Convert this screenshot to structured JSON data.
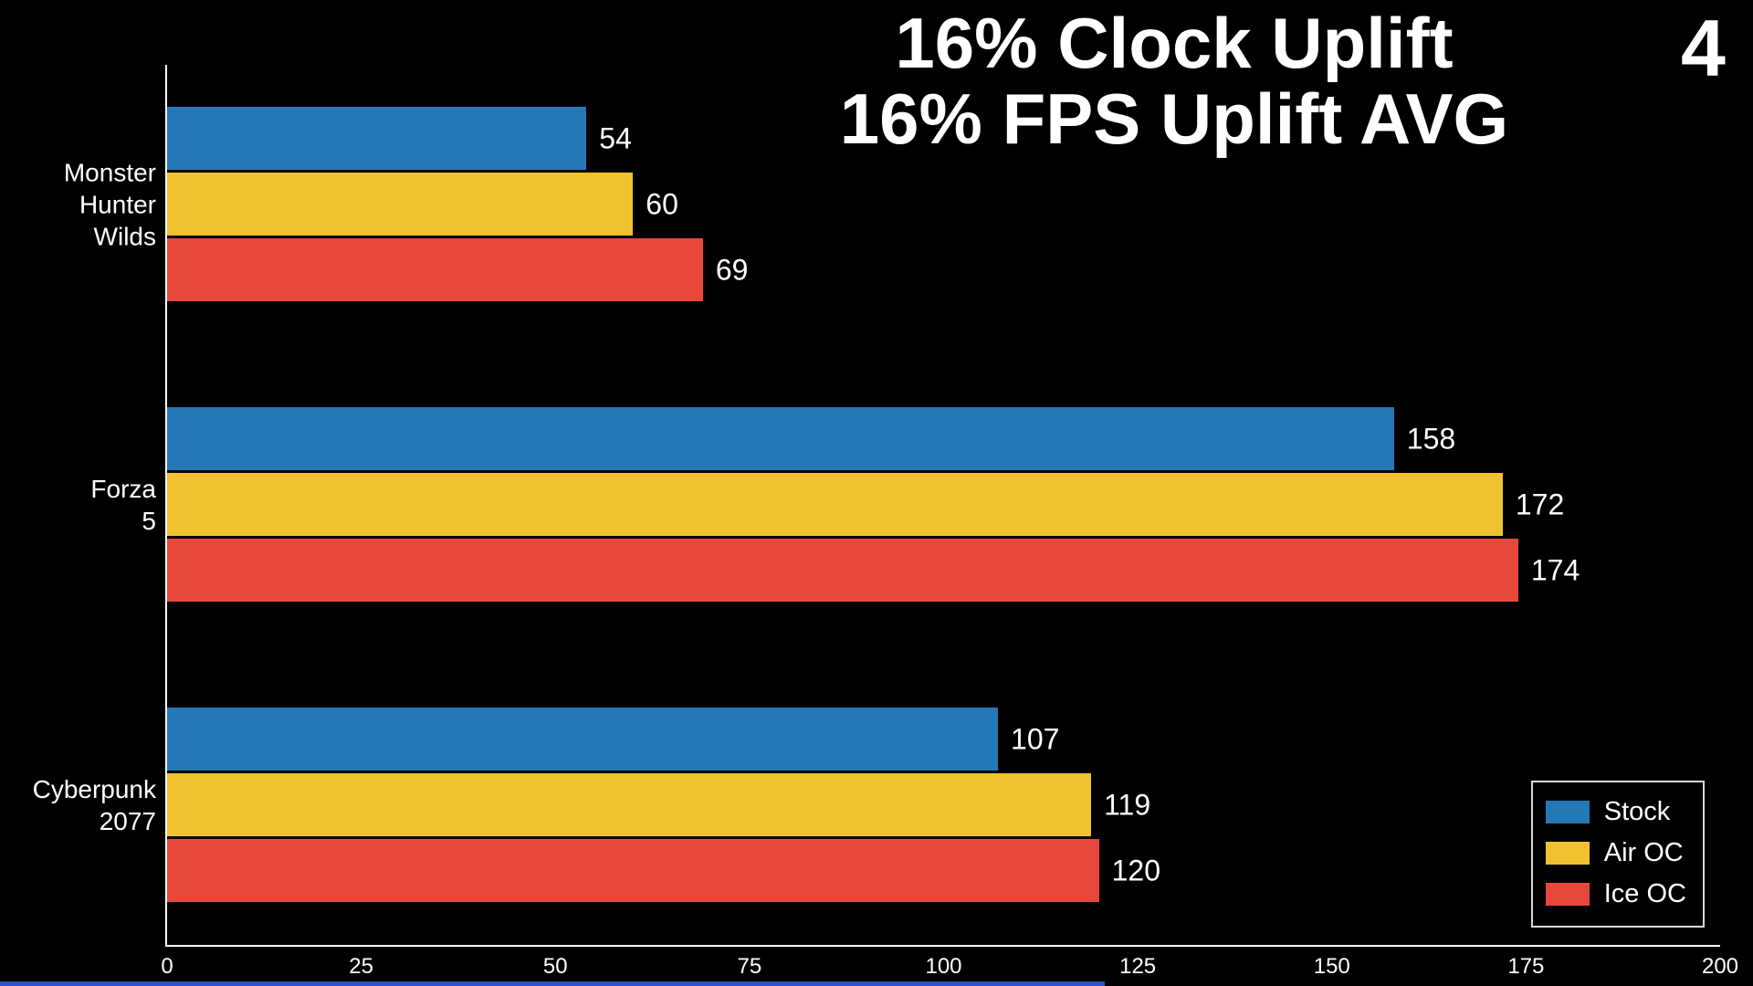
{
  "chart_data": {
    "type": "bar",
    "orientation": "horizontal",
    "title_lines": [
      "16% Clock Uplift",
      "16% FPS Uplift AVG"
    ],
    "slide_number": "4",
    "categories": [
      {
        "name": "Monster Hunter Wilds",
        "lines": [
          "Monster",
          "Hunter",
          "Wilds"
        ]
      },
      {
        "name": "Forza 5",
        "lines": [
          "Forza",
          "5"
        ]
      },
      {
        "name": "Cyberpunk 2077",
        "lines": [
          "Cyberpunk",
          "2077"
        ]
      }
    ],
    "series": [
      {
        "name": "Stock",
        "color": "#2478b6",
        "values": [
          54,
          158,
          107
        ]
      },
      {
        "name": "Air OC",
        "color": "#f0c22f",
        "values": [
          60,
          172,
          119
        ]
      },
      {
        "name": "Ice OC",
        "color": "#e8473c",
        "values": [
          69,
          174,
          120
        ]
      }
    ],
    "xlim": [
      0,
      200
    ],
    "xticks": [
      0,
      25,
      50,
      75,
      100,
      125,
      150,
      175,
      200
    ],
    "xlabel": "",
    "ylabel": "",
    "grid": false,
    "legend": {
      "position": "lower right",
      "entries": [
        "Stock",
        "Air OC",
        "Ice OC"
      ]
    },
    "background": "#000000",
    "text_color": "#ffffff",
    "axis_color": "#ffffff"
  },
  "progress_bar": {
    "percent": 63,
    "color": "#2c55c8"
  }
}
